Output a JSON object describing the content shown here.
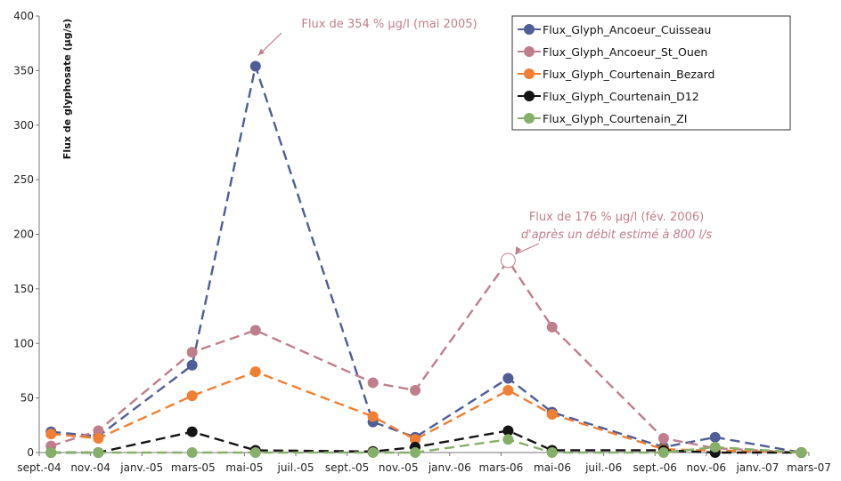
{
  "chart_data": {
    "type": "line",
    "ylabel": "Flux de glyphosate (µg/s)",
    "xlabel": "",
    "ylim": [
      0,
      400
    ],
    "yticks": [
      "0",
      "50",
      "100",
      "150",
      "200",
      "250",
      "300",
      "350",
      "400"
    ],
    "x_tick_labels": [
      "sept.-04",
      "nov.-04",
      "janv.-05",
      "mars-05",
      "mai-05",
      "juil.-05",
      "sept.-05",
      "nov.-05",
      "janv.-06",
      "mars-06",
      "mai-06",
      "juil.-06",
      "sept.-06",
      "nov.-06",
      "janv.-07",
      "mars-07"
    ],
    "x_range": [
      "2004-09-01",
      "2007-03-01"
    ],
    "legend_position": "top-right",
    "series": [
      {
        "name": "Flux_Glyph_Ancoeur_Cuisseau",
        "color": "#4f5e96",
        "points": [
          [
            "2004-09-15",
            19
          ],
          [
            "2004-11-10",
            15
          ],
          [
            "2005-03-01",
            80
          ],
          [
            "2005-05-15",
            354
          ],
          [
            "2005-10-01",
            28
          ],
          [
            "2005-11-20",
            14
          ],
          [
            "2006-03-10",
            68
          ],
          [
            "2006-05-01",
            37
          ],
          [
            "2006-09-10",
            5
          ],
          [
            "2006-11-10",
            14
          ],
          [
            "2007-02-20",
            0
          ]
        ]
      },
      {
        "name": "Flux_Glyph_Ancoeur_St_Ouen",
        "color": "#c07e8c",
        "points": [
          [
            "2004-09-15",
            6
          ],
          [
            "2004-11-10",
            20
          ],
          [
            "2005-03-01",
            92
          ],
          [
            "2005-05-15",
            112
          ],
          [
            "2005-10-01",
            64
          ],
          [
            "2005-11-20",
            57
          ],
          [
            "2006-03-10",
            176
          ],
          [
            "2006-05-01",
            115
          ],
          [
            "2006-09-10",
            13
          ],
          [
            "2006-11-10",
            4
          ],
          [
            "2007-02-20",
            0
          ]
        ]
      },
      {
        "name": "Flux_Glyph_Courtenain_Bezard",
        "color": "#f07f33",
        "points": [
          [
            "2004-09-15",
            17
          ],
          [
            "2004-11-10",
            13
          ],
          [
            "2005-03-01",
            52
          ],
          [
            "2005-05-15",
            74
          ],
          [
            "2005-10-01",
            33
          ],
          [
            "2005-11-20",
            12
          ],
          [
            "2006-03-10",
            57
          ],
          [
            "2006-05-01",
            35
          ],
          [
            "2006-09-10",
            3
          ],
          [
            "2007-02-20",
            0
          ]
        ]
      },
      {
        "name": "Flux_Glyph_Courtenain_D12",
        "color": "#141414",
        "points": [
          [
            "2004-09-15",
            0
          ],
          [
            "2004-11-10",
            0
          ],
          [
            "2005-03-01",
            19
          ],
          [
            "2005-05-15",
            2
          ],
          [
            "2005-10-01",
            1
          ],
          [
            "2005-11-20",
            5
          ],
          [
            "2006-03-10",
            20
          ],
          [
            "2006-05-01",
            2
          ],
          [
            "2006-09-10",
            2
          ],
          [
            "2006-11-10",
            0
          ],
          [
            "2007-02-20",
            0
          ]
        ]
      },
      {
        "name": "Flux_Glyph_Courtenain_ZI",
        "color": "#86b06a",
        "points": [
          [
            "2004-09-15",
            0
          ],
          [
            "2004-11-10",
            0
          ],
          [
            "2005-03-01",
            0
          ],
          [
            "2005-05-15",
            0
          ],
          [
            "2005-10-01",
            0
          ],
          [
            "2005-11-20",
            0
          ],
          [
            "2006-03-10",
            12
          ],
          [
            "2006-05-01",
            0
          ],
          [
            "2006-09-10",
            0
          ],
          [
            "2006-11-10",
            5
          ],
          [
            "2007-02-20",
            0
          ]
        ]
      }
    ],
    "annotations": [
      {
        "lines": [
          "Flux de 354 % µg/l (mai 2005)"
        ],
        "target": [
          "2005-05-15",
          354
        ]
      },
      {
        "lines": [
          "Flux de 176 % µg/l (fév. 2006)",
          "d'après un débit estimé à 800 l/s"
        ],
        "target": [
          "2006-03-10",
          176
        ]
      }
    ]
  }
}
